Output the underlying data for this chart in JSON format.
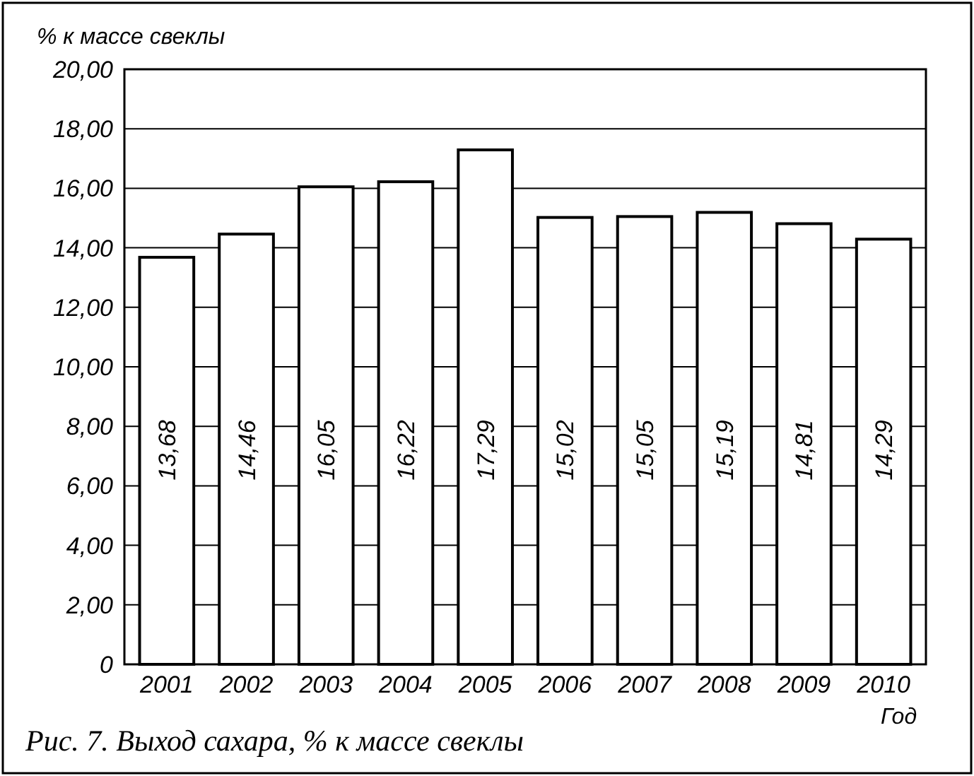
{
  "chart_data": {
    "type": "bar",
    "title": "Рис. 7. Выход сахара, % к массе свеклы",
    "ylabel": "% к массе свеклы",
    "xlabel": "Год",
    "categories": [
      "2001",
      "2002",
      "2003",
      "2004",
      "2005",
      "2006",
      "2007",
      "2008",
      "2009",
      "2010"
    ],
    "values": [
      13.68,
      14.46,
      16.05,
      16.22,
      17.29,
      15.02,
      15.05,
      15.19,
      14.81,
      14.29
    ],
    "value_labels": [
      "13,68",
      "14,46",
      "16,05",
      "16,22",
      "17,29",
      "15,02",
      "15,05",
      "15,19",
      "14,81",
      "14,29"
    ],
    "color": "#ffffff",
    "ylim": [
      0,
      20
    ],
    "yticks": [
      {
        "value": 0,
        "label": "0"
      },
      {
        "value": 2,
        "label": "2,00"
      },
      {
        "value": 4,
        "label": "4,00"
      },
      {
        "value": 6,
        "label": "6,00"
      },
      {
        "value": 8,
        "label": "8,00"
      },
      {
        "value": 10,
        "label": "10,00"
      },
      {
        "value": 12,
        "label": "12,00"
      },
      {
        "value": 14,
        "label": "14,00"
      },
      {
        "value": 16,
        "label": "16,00"
      },
      {
        "value": 18,
        "label": "18,00"
      },
      {
        "value": 20,
        "label": "20,00"
      }
    ],
    "grid": "y"
  }
}
